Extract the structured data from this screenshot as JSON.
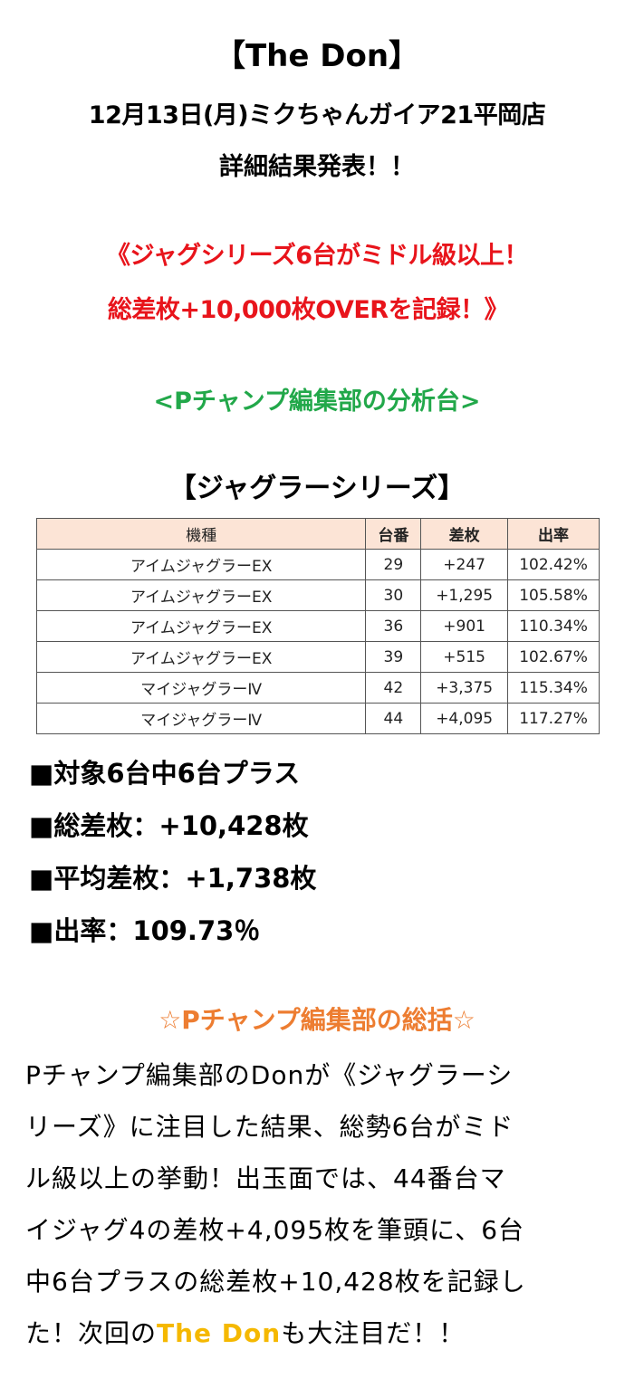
{
  "header": {
    "title": "【The Don】",
    "subtitle": "12月13日(月)ミクちゃんガイア21平岡店",
    "announcement": "詳細結果発表！！"
  },
  "headline": {
    "line1": "《ジャグシリーズ6台がミドル級以上！",
    "line2": "総差枚+10,000枚OVERを記録！》",
    "color": "#e8141b"
  },
  "analysis_label": {
    "text": "<Pチャンプ編集部の分析台>",
    "color": "#22a84a"
  },
  "table": {
    "title": "【ジャグラーシリーズ】",
    "header_bg": "#fce4d6",
    "columns": [
      "機種",
      "台番",
      "差枚",
      "出率"
    ],
    "rows": [
      {
        "model": "アイムジャグラーEX",
        "number": "29",
        "diff": "+247",
        "rate": "102.42%"
      },
      {
        "model": "アイムジャグラーEX",
        "number": "30",
        "diff": "+1,295",
        "rate": "105.58%"
      },
      {
        "model": "アイムジャグラーEX",
        "number": "36",
        "diff": "+901",
        "rate": "110.34%"
      },
      {
        "model": "アイムジャグラーEX",
        "number": "39",
        "diff": "+515",
        "rate": "102.67%"
      },
      {
        "model": "マイジャグラーⅣ",
        "number": "42",
        "diff": "+3,375",
        "rate": "115.34%"
      },
      {
        "model": "マイジャグラーⅣ",
        "number": "44",
        "diff": "+4,095",
        "rate": "117.27%"
      }
    ]
  },
  "stats": {
    "plus_count": "■対象6台中6台プラス",
    "total_diff": "■総差枚：+10,428枚",
    "avg_diff": "■平均差枚：+1,738枚",
    "rate": "■出率：109.73％"
  },
  "summary": {
    "title": "☆Pチャンプ編集部の総括☆",
    "title_color": "#ed7d31",
    "lines": [
      "Pチャンプ編集部のDonが《ジャグラーシ",
      "リーズ》に注目した結果、総勢6台がミド",
      "ル級以上の挙動！出玉面では、44番台マ",
      "イジャグ4の差枚+4,095枚を筆頭に、6台",
      "中6台プラスの総差枚+10,428枚を記録し"
    ],
    "last_line_before": "た！次回の",
    "last_line_highlight": "The Don",
    "last_line_after": "も大注目だ！！",
    "highlight_color": "#f5b800"
  }
}
